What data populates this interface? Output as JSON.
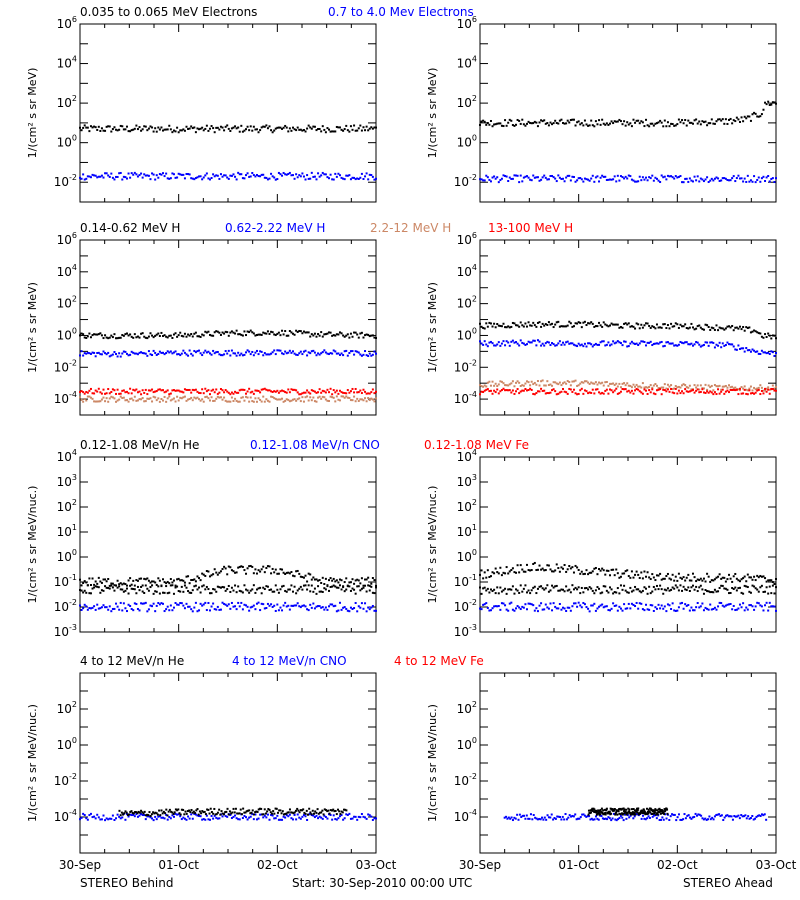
{
  "footer": {
    "left": "STEREO Behind",
    "center": "Start: 30-Sep-2010 00:00 UTC",
    "right": "STEREO Ahead"
  },
  "x_ticks": [
    "30-Sep",
    "01-Oct",
    "02-Oct",
    "03-Oct"
  ],
  "chart_data": [
    {
      "type": "scatter",
      "row": "electrons",
      "titles": [
        {
          "text": "0.035 to 0.065 MeV Electrons",
          "color": "#000000"
        },
        {
          "text": "0.7 to 4.0 Mev Electrons",
          "color": "#0000ff"
        }
      ],
      "ylabel": "1/(cm² s sr MeV)",
      "yscale": "log",
      "ylim": [
        0.001,
        1000000
      ],
      "y_ticks": [
        {
          "base": "10",
          "exp": "-2"
        },
        {
          "base": "10",
          "exp": "0"
        },
        {
          "base": "10",
          "exp": "2"
        },
        {
          "base": "10",
          "exp": "4"
        },
        {
          "base": "10",
          "exp": "6"
        }
      ],
      "xlim": [
        0,
        3
      ],
      "panels": [
        {
          "name": "STEREO Behind",
          "series": [
            {
              "color": "#000000",
              "points": [
                [
                  0,
                  5
                ],
                [
                  0.5,
                  5
                ],
                [
                  1,
                  5
                ],
                [
                  1.5,
                  5
                ],
                [
                  2,
                  5
                ],
                [
                  2.5,
                  5
                ],
                [
                  3,
                  5
                ]
              ]
            },
            {
              "color": "#0000ff",
              "points": [
                [
                  0,
                  0.02
                ],
                [
                  0.5,
                  0.02
                ],
                [
                  1,
                  0.02
                ],
                [
                  1.5,
                  0.02
                ],
                [
                  2,
                  0.02
                ],
                [
                  2.5,
                  0.02
                ],
                [
                  3,
                  0.02
                ]
              ]
            }
          ]
        },
        {
          "name": "STEREO Ahead",
          "series": [
            {
              "color": "#000000",
              "points": [
                [
                  0,
                  10
                ],
                [
                  0.5,
                  10
                ],
                [
                  1,
                  10
                ],
                [
                  1.5,
                  10
                ],
                [
                  2,
                  10
                ],
                [
                  2.5,
                  12
                ],
                [
                  2.7,
                  15
                ],
                [
                  2.85,
                  30
                ],
                [
                  2.9,
                  100
                ],
                [
                  3,
                  100
                ]
              ]
            },
            {
              "color": "#0000ff",
              "points": [
                [
                  0,
                  0.015
                ],
                [
                  0.5,
                  0.015
                ],
                [
                  1,
                  0.015
                ],
                [
                  1.5,
                  0.015
                ],
                [
                  2,
                  0.015
                ],
                [
                  2.5,
                  0.015
                ],
                [
                  3,
                  0.015
                ]
              ]
            }
          ]
        }
      ]
    },
    {
      "type": "scatter",
      "row": "protons",
      "titles": [
        {
          "text": "0.14-0.62 MeV H",
          "color": "#000000"
        },
        {
          "text": "0.62-2.22 MeV H",
          "color": "#0000ff"
        },
        {
          "text": "2.2-12 MeV H",
          "color": "#cc8866"
        },
        {
          "text": "13-100 MeV H",
          "color": "#ff0000"
        }
      ],
      "ylabel": "1/(cm² s sr MeV)",
      "yscale": "log",
      "ylim": [
        1e-05,
        1000000
      ],
      "y_ticks": [
        {
          "base": "10",
          "exp": "-4"
        },
        {
          "base": "10",
          "exp": "-2"
        },
        {
          "base": "10",
          "exp": "0"
        },
        {
          "base": "10",
          "exp": "2"
        },
        {
          "base": "10",
          "exp": "4"
        },
        {
          "base": "10",
          "exp": "6"
        }
      ],
      "xlim": [
        0,
        3
      ],
      "panels": [
        {
          "name": "STEREO Behind",
          "series": [
            {
              "color": "#000000",
              "points": [
                [
                  0,
                  1
                ],
                [
                  0.5,
                  1
                ],
                [
                  1,
                  1
                ],
                [
                  1.5,
                  1.4
                ],
                [
                  2,
                  1.5
                ],
                [
                  2.5,
                  1.1
                ],
                [
                  3,
                  1
                ]
              ]
            },
            {
              "color": "#0000ff",
              "points": [
                [
                  0,
                  0.07
                ],
                [
                  0.5,
                  0.07
                ],
                [
                  1,
                  0.08
                ],
                [
                  1.5,
                  0.08
                ],
                [
                  2,
                  0.08
                ],
                [
                  2.5,
                  0.08
                ],
                [
                  3,
                  0.07
                ]
              ]
            },
            {
              "color": "#cc8866",
              "points": [
                [
                  0,
                  0.0001
                ],
                [
                  0.5,
                  0.0001
                ],
                [
                  1,
                  0.0001
                ],
                [
                  1.5,
                  0.0001
                ],
                [
                  2,
                  0.0001
                ],
                [
                  2.5,
                  0.0001
                ],
                [
                  3,
                  0.0001
                ]
              ]
            },
            {
              "color": "#ff0000",
              "points": [
                [
                  0,
                  0.0003
                ],
                [
                  0.5,
                  0.0003
                ],
                [
                  1,
                  0.0003
                ],
                [
                  1.5,
                  0.0003
                ],
                [
                  2,
                  0.0003
                ],
                [
                  2.5,
                  0.0003
                ],
                [
                  3,
                  0.0003
                ]
              ]
            }
          ]
        },
        {
          "name": "STEREO Ahead",
          "series": [
            {
              "color": "#000000",
              "points": [
                [
                  0,
                  4
                ],
                [
                  0.5,
                  5
                ],
                [
                  1,
                  5
                ],
                [
                  1.5,
                  4
                ],
                [
                  2,
                  4
                ],
                [
                  2.5,
                  3
                ],
                [
                  2.8,
                  2
                ],
                [
                  2.85,
                  1
                ],
                [
                  3,
                  0.8
                ]
              ]
            },
            {
              "color": "#0000ff",
              "points": [
                [
                  0,
                  0.3
                ],
                [
                  0.5,
                  0.35
                ],
                [
                  1,
                  0.3
                ],
                [
                  1.5,
                  0.3
                ],
                [
                  2,
                  0.3
                ],
                [
                  2.5,
                  0.25
                ],
                [
                  2.8,
                  0.1
                ],
                [
                  3,
                  0.07
                ]
              ]
            },
            {
              "color": "#cc8866",
              "points": [
                [
                  0,
                  0.0008
                ],
                [
                  0.5,
                  0.001
                ],
                [
                  1,
                  0.001
                ],
                [
                  1.5,
                  0.0008
                ],
                [
                  2,
                  0.0006
                ],
                [
                  2.5,
                  0.0005
                ],
                [
                  3,
                  0.0005
                ]
              ]
            },
            {
              "color": "#ff0000",
              "points": [
                [
                  0,
                  0.0003
                ],
                [
                  0.5,
                  0.0003
                ],
                [
                  1,
                  0.0003
                ],
                [
                  1.5,
                  0.0003
                ],
                [
                  2,
                  0.0003
                ],
                [
                  2.5,
                  0.0003
                ],
                [
                  3,
                  0.0003
                ]
              ]
            }
          ]
        }
      ]
    },
    {
      "type": "scatter",
      "row": "heavy-low",
      "titles": [
        {
          "text": "0.12-1.08 MeV/n He",
          "color": "#000000"
        },
        {
          "text": "0.12-1.08 MeV/n CNO",
          "color": "#0000ff"
        },
        {
          "text": "0.12-1.08 MeV Fe",
          "color": "#ff0000"
        }
      ],
      "ylabel": "1/(cm² s sr MeV/nuc.)",
      "yscale": "log",
      "ylim": [
        0.001,
        10000
      ],
      "y_ticks": [
        {
          "base": "10",
          "exp": "-3"
        },
        {
          "base": "10",
          "exp": "-2"
        },
        {
          "base": "10",
          "exp": "-1"
        },
        {
          "base": "10",
          "exp": "0"
        },
        {
          "base": "10",
          "exp": "1"
        },
        {
          "base": "10",
          "exp": "2"
        },
        {
          "base": "10",
          "exp": "3"
        },
        {
          "base": "10",
          "exp": "4"
        }
      ],
      "xlim": [
        0,
        3
      ],
      "panels": [
        {
          "name": "STEREO Behind",
          "series": [
            {
              "color": "#000000",
              "points": [
                [
                  0,
                  0.05
                ],
                [
                  0.5,
                  0.05
                ],
                [
                  1,
                  0.05
                ],
                [
                  1.5,
                  0.05
                ],
                [
                  2,
                  0.05
                ],
                [
                  2.5,
                  0.05
                ],
                [
                  3,
                  0.05
                ]
              ]
            },
            {
              "color": "#000000",
              "points": [
                [
                  0,
                  0.1
                ],
                [
                  0.5,
                  0.1
                ],
                [
                  1,
                  0.1
                ],
                [
                  1.5,
                  0.3
                ],
                [
                  2,
                  0.3
                ],
                [
                  2.5,
                  0.1
                ],
                [
                  3,
                  0.1
                ]
              ]
            },
            {
              "color": "#0000ff",
              "points": [
                [
                  0,
                  0.01
                ],
                [
                  0.5,
                  0.01
                ],
                [
                  1,
                  0.01
                ],
                [
                  1.5,
                  0.01
                ],
                [
                  2,
                  0.01
                ],
                [
                  2.5,
                  0.01
                ],
                [
                  3,
                  0.01
                ]
              ]
            }
          ]
        },
        {
          "name": "STEREO Ahead",
          "series": [
            {
              "color": "#000000",
              "points": [
                [
                  0,
                  0.05
                ],
                [
                  0.5,
                  0.05
                ],
                [
                  1,
                  0.05
                ],
                [
                  1.5,
                  0.05
                ],
                [
                  2,
                  0.05
                ],
                [
                  2.5,
                  0.05
                ],
                [
                  3,
                  0.05
                ]
              ]
            },
            {
              "color": "#000000",
              "points": [
                [
                  0,
                  0.2
                ],
                [
                  0.5,
                  0.4
                ],
                [
                  1,
                  0.3
                ],
                [
                  1.5,
                  0.2
                ],
                [
                  2,
                  0.15
                ],
                [
                  2.5,
                  0.15
                ],
                [
                  3,
                  0.12
                ]
              ]
            },
            {
              "color": "#0000ff",
              "points": [
                [
                  0,
                  0.01
                ],
                [
                  0.5,
                  0.01
                ],
                [
                  1,
                  0.01
                ],
                [
                  1.5,
                  0.01
                ],
                [
                  2,
                  0.01
                ],
                [
                  2.5,
                  0.01
                ],
                [
                  3,
                  0.01
                ]
              ]
            }
          ]
        }
      ]
    },
    {
      "type": "scatter",
      "row": "heavy-high",
      "titles": [
        {
          "text": "4 to 12 MeV/n He",
          "color": "#000000"
        },
        {
          "text": "4 to 12 MeV/n CNO",
          "color": "#0000ff"
        },
        {
          "text": "4 to 12 MeV Fe",
          "color": "#ff0000"
        }
      ],
      "ylabel": "1/(cm² s sr MeV/nuc.)",
      "yscale": "log",
      "ylim": [
        1e-06,
        10000
      ],
      "y_ticks": [
        {
          "base": "10",
          "exp": "-4"
        },
        {
          "base": "10",
          "exp": "-2"
        },
        {
          "base": "10",
          "exp": "0"
        },
        {
          "base": "10",
          "exp": "2"
        }
      ],
      "xlim": [
        0,
        3
      ],
      "panels": [
        {
          "name": "STEREO Behind",
          "series": [
            {
              "color": "#0000ff",
              "points": [
                [
                  0,
                  0.0001
                ],
                [
                  0.5,
                  0.0001
                ],
                [
                  1,
                  0.0001
                ],
                [
                  1.5,
                  0.0001
                ],
                [
                  2,
                  0.0001
                ],
                [
                  2.5,
                  0.0001
                ],
                [
                  3,
                  0.0001
                ]
              ]
            },
            {
              "color": "#000000",
              "points": [
                [
                  0.4,
                  0.00015
                ],
                [
                  1.3,
                  0.0002
                ],
                [
                  2.7,
                  0.0002
                ]
              ]
            }
          ]
        },
        {
          "name": "STEREO Ahead",
          "series": [
            {
              "color": "#0000ff",
              "points": [
                [
                  0.25,
                  0.0001
                ],
                [
                  0.5,
                  0.0001
                ],
                [
                  1,
                  0.0001
                ],
                [
                  1.5,
                  0.0001
                ],
                [
                  2,
                  0.0001
                ],
                [
                  2.5,
                  0.0001
                ],
                [
                  2.9,
                  0.0001
                ]
              ]
            },
            {
              "color": "#000000",
              "points": [
                [
                  1.1,
                  0.0002
                ],
                [
                  1.9,
                  0.0002
                ]
              ]
            }
          ]
        }
      ]
    }
  ]
}
